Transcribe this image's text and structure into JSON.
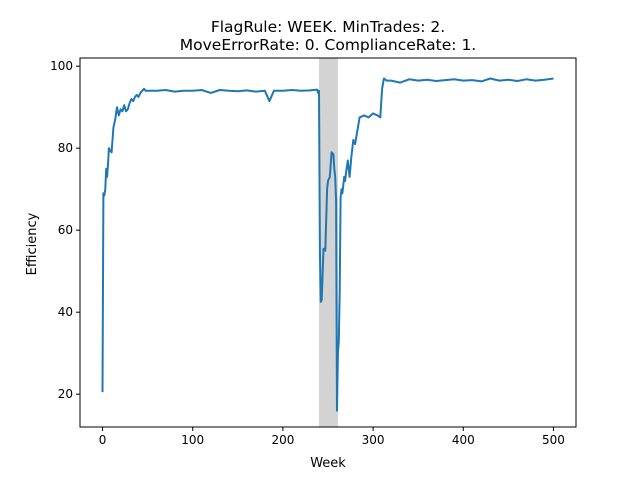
{
  "chart_data": {
    "type": "line",
    "title": [
      "FlagRule: WEEK. MinTrades: 2.",
      "MoveErrorRate: 0. ComplianceRate: 1."
    ],
    "xlabel": "Week",
    "ylabel": "Efficiency",
    "xlim": [
      -25,
      525
    ],
    "ylim": [
      12,
      102
    ],
    "xticks": [
      0,
      100,
      200,
      300,
      400,
      500
    ],
    "yticks": [
      20,
      40,
      60,
      80,
      100
    ],
    "grid": false,
    "shaded_region": {
      "x": [
        240,
        261
      ],
      "color": "#d3d3d3"
    },
    "series": [
      {
        "color": "#1f77b4",
        "x": [
          0,
          1,
          2,
          3,
          4,
          5,
          6,
          7,
          8,
          10,
          12,
          14,
          16,
          18,
          20,
          22,
          24,
          26,
          28,
          30,
          32,
          34,
          36,
          38,
          40,
          42,
          44,
          46,
          48,
          50,
          60,
          70,
          80,
          90,
          100,
          110,
          120,
          130,
          140,
          150,
          160,
          170,
          180,
          185,
          190,
          200,
          210,
          220,
          230,
          238,
          239,
          240,
          241,
          242,
          243,
          245,
          247,
          249,
          250,
          252,
          254,
          256,
          257,
          258,
          259,
          260,
          261,
          262,
          263,
          264,
          265,
          266,
          267,
          268,
          269,
          270,
          272,
          274,
          276,
          278,
          280,
          285,
          290,
          295,
          300,
          305,
          308,
          310,
          312,
          315,
          320,
          330,
          340,
          350,
          360,
          370,
          380,
          390,
          400,
          410,
          420,
          430,
          440,
          450,
          460,
          470,
          480,
          490,
          500
        ],
        "y": [
          20.5,
          69,
          68.5,
          70,
          75,
          73,
          76,
          80,
          79.5,
          79,
          85,
          87,
          90,
          88,
          89.5,
          89,
          90.5,
          89,
          89.5,
          91,
          92,
          91.5,
          92.5,
          93,
          92.5,
          93.5,
          94,
          94.5,
          94,
          94,
          94,
          94.2,
          93.8,
          94,
          94,
          94.2,
          93.5,
          94.2,
          94,
          93.9,
          94.1,
          93.8,
          94,
          91.5,
          94,
          94,
          94.2,
          94,
          94.1,
          94.3,
          93.5,
          94,
          55,
          42.5,
          43,
          55.5,
          55,
          70,
          72,
          73,
          79,
          78.5,
          75,
          73,
          67,
          16,
          30,
          33,
          45,
          68,
          70,
          69,
          71,
          73,
          72,
          74,
          77,
          73,
          78,
          82,
          81,
          87.5,
          88,
          87.5,
          88.5,
          88,
          87.5,
          94.5,
          97,
          96.5,
          96.5,
          96,
          96.8,
          96.5,
          96.7,
          96.4,
          96.6,
          96.8,
          96.5,
          96.6,
          96.3,
          97,
          96.5,
          96.7,
          96.4,
          96.8,
          96.5,
          96.7,
          97
        ]
      }
    ]
  }
}
